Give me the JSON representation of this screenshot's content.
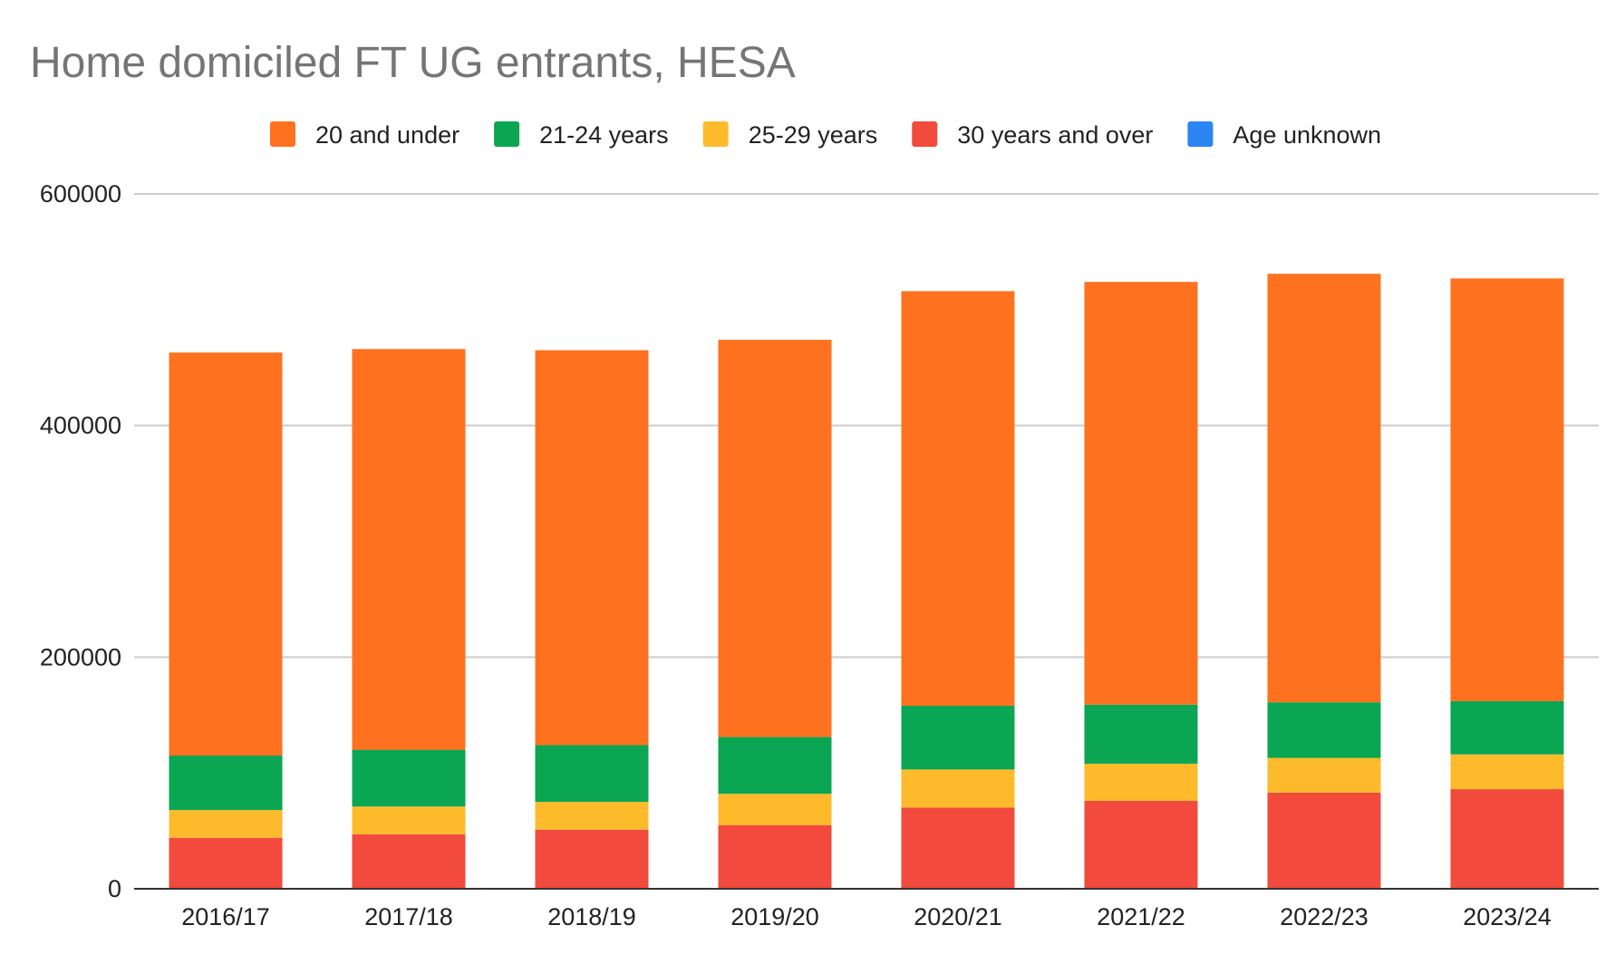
{
  "chart_data": {
    "type": "bar",
    "stacked": true,
    "title": "Home domiciled FT UG entrants, HESA",
    "xlabel": "",
    "ylabel": "",
    "categories": [
      "2016/17",
      "2017/18",
      "2018/19",
      "2019/20",
      "2020/21",
      "2021/22",
      "2022/23",
      "2023/24"
    ],
    "series": [
      {
        "name": "30 years and over",
        "color": "#f24a3c",
        "values": [
          44000,
          47000,
          51000,
          55000,
          70000,
          76000,
          83000,
          86000
        ]
      },
      {
        "name": "25-29 years",
        "color": "#fdbb2c",
        "values": [
          24000,
          24000,
          24000,
          27000,
          33000,
          32000,
          30000,
          30000
        ]
      },
      {
        "name": "21-24 years",
        "color": "#0aa653",
        "values": [
          47000,
          49000,
          49000,
          49000,
          55000,
          51000,
          48000,
          46000
        ]
      },
      {
        "name": "20 and under",
        "color": "#fe721f",
        "values": [
          348000,
          346000,
          341000,
          343000,
          358000,
          365000,
          370000,
          365000
        ]
      },
      {
        "name": "Age unknown",
        "color": "#2b85f3",
        "values": [
          0,
          0,
          0,
          0,
          0,
          0,
          0,
          0
        ]
      }
    ],
    "legend_order": [
      "20 and under",
      "21-24 years",
      "25-29 years",
      "30 years and over",
      "Age unknown"
    ],
    "yticks": [
      "0",
      "200000",
      "400000",
      "600000"
    ],
    "ylim": [
      0,
      600000
    ],
    "grid": true,
    "legend_position": "top"
  }
}
